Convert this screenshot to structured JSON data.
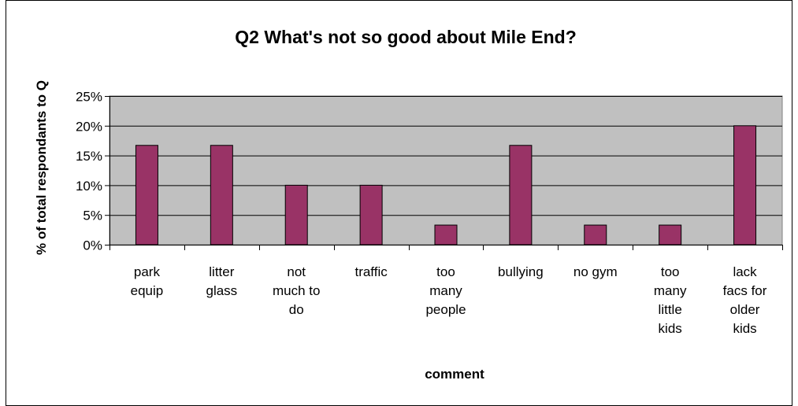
{
  "chart_data": {
    "type": "bar",
    "title": "Q2 What's not so good about Mile End?",
    "xlabel": "comment",
    "ylabel": "% of total respondants to Q",
    "categories": [
      [
        "park",
        "equip"
      ],
      [
        "litter",
        "glass"
      ],
      [
        "not",
        "much to",
        "do"
      ],
      [
        "traffic"
      ],
      [
        "too",
        "many",
        "people"
      ],
      [
        "bullying"
      ],
      [
        "no gym"
      ],
      [
        "too",
        "many",
        "little",
        "kids"
      ],
      [
        "lack",
        "facs for",
        "older",
        "kids"
      ]
    ],
    "values": [
      16.7,
      16.7,
      10.0,
      10.0,
      3.3,
      16.7,
      3.3,
      3.3,
      20.0
    ],
    "ylim": [
      0,
      25
    ],
    "yticks": [
      0,
      5,
      10,
      15,
      20,
      25
    ],
    "ytick_suffix": "%",
    "grid": true,
    "legend": "none",
    "colors": {
      "bar": "#993366",
      "plot_background": "#c0c0c0",
      "frame": "#000000"
    }
  }
}
